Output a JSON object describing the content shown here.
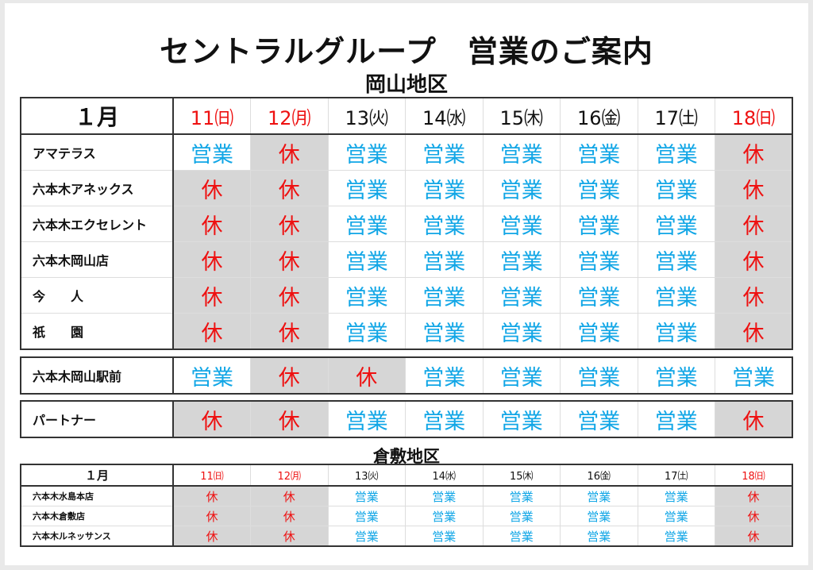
{
  "title": "セントラルグループ　営業のご案内",
  "colors": {
    "open": "#11a6e6",
    "closed": "#ee1111",
    "closed_bg": "#d6d6d6"
  },
  "okayama": {
    "region": "岡山地区",
    "month": "１月",
    "days": [
      {
        "label": "11㈰",
        "holiday": true
      },
      {
        "label": "12㈪",
        "holiday": true
      },
      {
        "label": "13㈫",
        "holiday": false
      },
      {
        "label": "14㈬",
        "holiday": false
      },
      {
        "label": "15㈭",
        "holiday": false
      },
      {
        "label": "16㈮",
        "holiday": false
      },
      {
        "label": "17㈯",
        "holiday": false
      },
      {
        "label": "18㈰",
        "holiday": true
      }
    ],
    "groups": [
      [
        {
          "name": "アマテラス",
          "status": [
            "営業",
            "休",
            "営業",
            "営業",
            "営業",
            "営業",
            "営業",
            "休"
          ]
        },
        {
          "name": "六本木アネックス",
          "status": [
            "休",
            "休",
            "営業",
            "営業",
            "営業",
            "営業",
            "営業",
            "休"
          ]
        },
        {
          "name": "六本木エクセレント",
          "status": [
            "休",
            "休",
            "営業",
            "営業",
            "営業",
            "営業",
            "営業",
            "休"
          ]
        },
        {
          "name": "六本木岡山店",
          "status": [
            "休",
            "休",
            "営業",
            "営業",
            "営業",
            "営業",
            "営業",
            "休"
          ]
        },
        {
          "name": "今　　人",
          "status": [
            "休",
            "休",
            "営業",
            "営業",
            "営業",
            "営業",
            "営業",
            "休"
          ]
        },
        {
          "name": "祇　　園",
          "status": [
            "休",
            "休",
            "営業",
            "営業",
            "営業",
            "営業",
            "営業",
            "休"
          ]
        }
      ],
      [
        {
          "name": "六本木岡山駅前",
          "status": [
            "営業",
            "休",
            "休",
            "営業",
            "営業",
            "営業",
            "営業",
            "営業"
          ]
        }
      ],
      [
        {
          "name": "パートナー",
          "status": [
            "休",
            "休",
            "営業",
            "営業",
            "営業",
            "営業",
            "営業",
            "休"
          ]
        }
      ]
    ]
  },
  "kurashiki": {
    "region": "倉敷地区",
    "month": "１月",
    "days": [
      {
        "label": "11㈰",
        "holiday": true
      },
      {
        "label": "12㈪",
        "holiday": true
      },
      {
        "label": "13㈫",
        "holiday": false
      },
      {
        "label": "14㈬",
        "holiday": false
      },
      {
        "label": "15㈭",
        "holiday": false
      },
      {
        "label": "16㈮",
        "holiday": false
      },
      {
        "label": "17㈯",
        "holiday": false
      },
      {
        "label": "18㈰",
        "holiday": true
      }
    ],
    "rows": [
      {
        "name": "六本木水島本店",
        "status": [
          "休",
          "休",
          "営業",
          "営業",
          "営業",
          "営業",
          "営業",
          "休"
        ]
      },
      {
        "name": "六本木倉敷店",
        "status": [
          "休",
          "休",
          "営業",
          "営業",
          "営業",
          "営業",
          "営業",
          "休"
        ]
      },
      {
        "name": "六本木ルネッサンス",
        "status": [
          "休",
          "休",
          "営業",
          "営業",
          "営業",
          "営業",
          "営業",
          "休"
        ]
      }
    ]
  }
}
